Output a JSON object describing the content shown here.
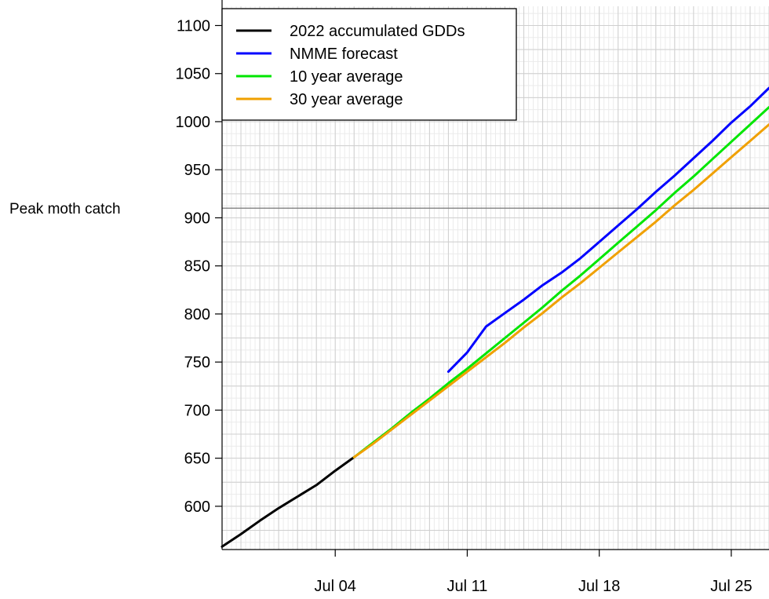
{
  "chart_data": {
    "type": "line",
    "title": "",
    "xlabel": "",
    "ylabel": "",
    "x_axis": {
      "type": "date",
      "range": [
        "2022-06-28",
        "2022-07-27"
      ],
      "ticks": [
        {
          "date": "2022-07-04",
          "label": "Jul 04"
        },
        {
          "date": "2022-07-11",
          "label": "Jul 11"
        },
        {
          "date": "2022-07-18",
          "label": "Jul 18"
        },
        {
          "date": "2022-07-25",
          "label": "Jul 25"
        }
      ]
    },
    "y_axis": {
      "range": [
        555,
        1120
      ],
      "ticks": [
        600,
        650,
        700,
        750,
        800,
        850,
        900,
        950,
        1000,
        1050,
        1100
      ]
    },
    "grid": true,
    "legend": {
      "position": "top-left"
    },
    "reference_lines": [
      {
        "label": "Peak moth catch",
        "y": 910,
        "color": "#808080"
      }
    ],
    "series": [
      {
        "name": "2022 accumulated GDDs",
        "color": "#000000",
        "x": [
          "2022-06-28",
          "2022-06-29",
          "2022-06-30",
          "2022-07-01",
          "2022-07-02",
          "2022-07-03",
          "2022-07-04",
          "2022-07-05"
        ],
        "y": [
          558,
          571,
          585,
          598,
          610,
          622,
          637,
          651
        ]
      },
      {
        "name": "NMME forecast",
        "color": "#0000ff",
        "x": [
          "2022-07-10",
          "2022-07-11",
          "2022-07-12",
          "2022-07-13",
          "2022-07-14",
          "2022-07-15",
          "2022-07-16",
          "2022-07-17",
          "2022-07-18",
          "2022-07-19",
          "2022-07-20",
          "2022-07-21",
          "2022-07-22",
          "2022-07-23",
          "2022-07-24",
          "2022-07-25",
          "2022-07-26",
          "2022-07-27"
        ],
        "y": [
          740,
          760,
          787,
          801,
          815,
          830,
          843,
          858,
          875,
          892,
          909,
          927,
          944,
          962,
          980,
          999,
          1016,
          1035
        ]
      },
      {
        "name": "10 year average",
        "color": "#00e600",
        "x": [
          "2022-07-05",
          "2022-07-06",
          "2022-07-07",
          "2022-07-08",
          "2022-07-09",
          "2022-07-10",
          "2022-07-11",
          "2022-07-12",
          "2022-07-13",
          "2022-07-14",
          "2022-07-15",
          "2022-07-16",
          "2022-07-17",
          "2022-07-18",
          "2022-07-19",
          "2022-07-20",
          "2022-07-21",
          "2022-07-22",
          "2022-07-23",
          "2022-07-24",
          "2022-07-25",
          "2022-07-26",
          "2022-07-27"
        ],
        "y": [
          651,
          666,
          681,
          697,
          712,
          728,
          743,
          759,
          775,
          791,
          807,
          824,
          840,
          857,
          874,
          891,
          908,
          926,
          943,
          961,
          979,
          997,
          1015
        ]
      },
      {
        "name": "30 year average",
        "color": "#f0a000",
        "x": [
          "2022-07-05",
          "2022-07-06",
          "2022-07-07",
          "2022-07-08",
          "2022-07-09",
          "2022-07-10",
          "2022-07-11",
          "2022-07-12",
          "2022-07-13",
          "2022-07-14",
          "2022-07-15",
          "2022-07-16",
          "2022-07-17",
          "2022-07-18",
          "2022-07-19",
          "2022-07-20",
          "2022-07-21",
          "2022-07-22",
          "2022-07-23",
          "2022-07-24",
          "2022-07-25",
          "2022-07-26",
          "2022-07-27"
        ],
        "y": [
          651,
          665,
          680,
          695,
          710,
          725,
          740,
          755,
          770,
          786,
          801,
          817,
          832,
          848,
          864,
          880,
          896,
          913,
          929,
          946,
          963,
          980,
          997
        ]
      }
    ]
  }
}
